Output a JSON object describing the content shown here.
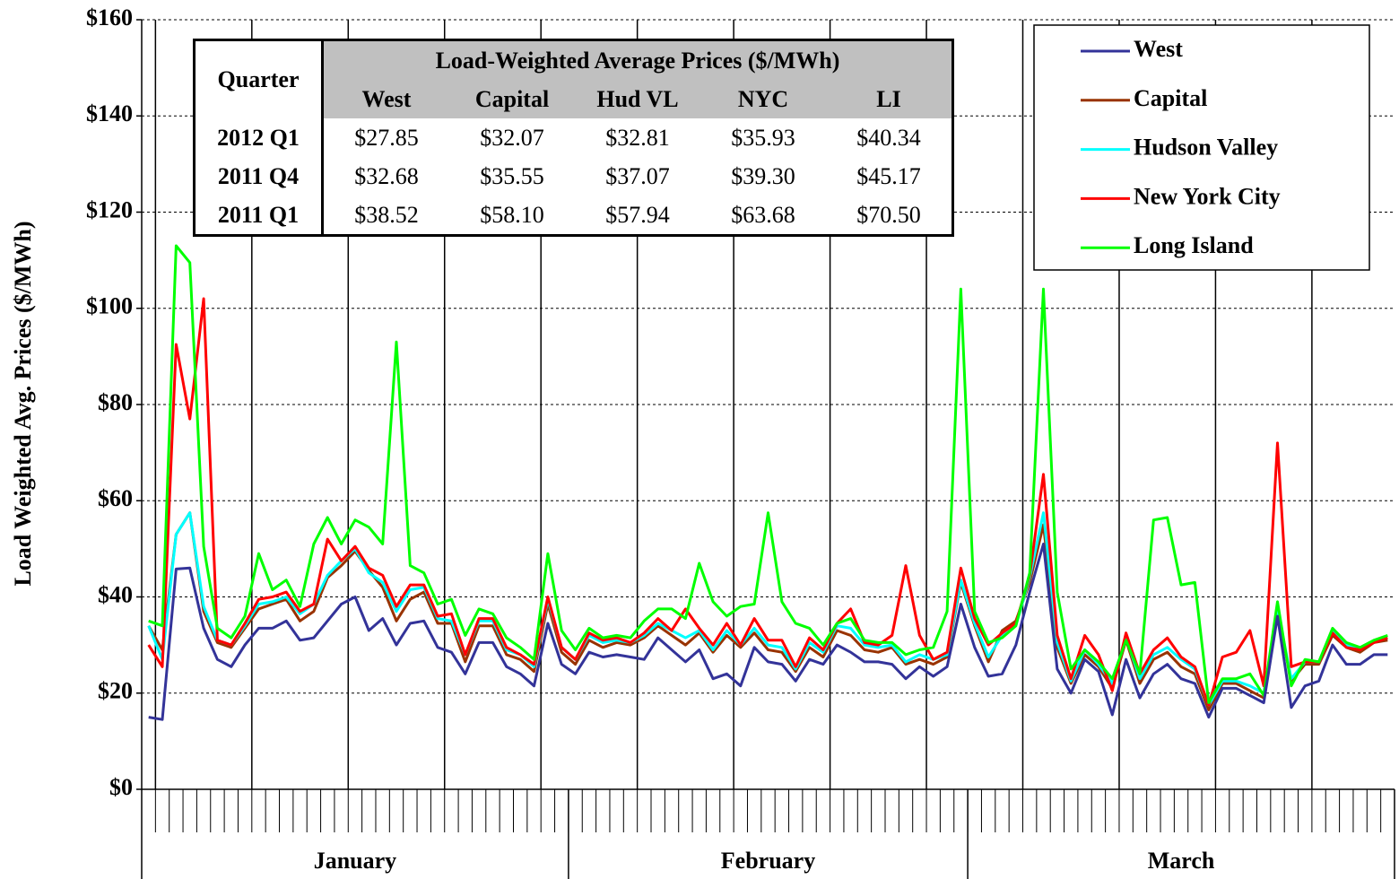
{
  "chart_data": {
    "type": "line",
    "y_label": "Load Weighted Avg. Prices  ($/MWh)",
    "categories": [
      null,
      null,
      null,
      null,
      null,
      null,
      null,
      null,
      null,
      null,
      null,
      null,
      null,
      null,
      null,
      null,
      null,
      null,
      null,
      null,
      null,
      null,
      null,
      null,
      null,
      null,
      null,
      null,
      null,
      null,
      null,
      null,
      null,
      null,
      null,
      null,
      null,
      null,
      null,
      null,
      null,
      null,
      null,
      null,
      null,
      null,
      null,
      null,
      null,
      null,
      null,
      null,
      null,
      null,
      null,
      null,
      null,
      null,
      null,
      null,
      null,
      null,
      null,
      null,
      null,
      null,
      null,
      null,
      null,
      null,
      null,
      null,
      null,
      null,
      null,
      null,
      null,
      null,
      null,
      null,
      null,
      null,
      null,
      null,
      null,
      null,
      null,
      null,
      null,
      null,
      null
    ],
    "x_groups": [
      "January",
      "February",
      "March"
    ],
    "group_sizes": [
      31,
      29,
      31
    ],
    "ylim": [
      0,
      160
    ],
    "yticks": [
      {
        "value": 0,
        "label": "$0"
      },
      {
        "value": 20,
        "label": "$20"
      },
      {
        "value": 40,
        "label": "$40"
      },
      {
        "value": 60,
        "label": "$60"
      },
      {
        "value": 80,
        "label": "$80"
      },
      {
        "value": 100,
        "label": "$100"
      },
      {
        "value": 120,
        "label": "$120"
      },
      {
        "value": 140,
        "label": "$140"
      },
      {
        "value": 160,
        "label": "$160"
      }
    ],
    "grid": true,
    "legend": "upper right",
    "series": [
      {
        "name": "West",
        "color": "#333399",
        "values": [
          15,
          14.5,
          45.8,
          46,
          33.5,
          27,
          25.5,
          30,
          33.5,
          33.5,
          35,
          31,
          31.5,
          35,
          38.5,
          40,
          33,
          35.5,
          30,
          34.5,
          35,
          29.5,
          28.5,
          24,
          30.5,
          30.5,
          25.5,
          24,
          21.5,
          34.5,
          26,
          24,
          28.5,
          27.5,
          28,
          27.5,
          27,
          31.5,
          29,
          26.5,
          29,
          23,
          24,
          21.5,
          29.5,
          26.5,
          26,
          22.5,
          27,
          26,
          30,
          28.5,
          26.5,
          26.5,
          26,
          23,
          25.5,
          23.5,
          25.5,
          38.5,
          29.5,
          23.5,
          24,
          30,
          41,
          51,
          25,
          20,
          27,
          24.5,
          15.5,
          27,
          19,
          24,
          26,
          23,
          22,
          15,
          21,
          21,
          19.5,
          18,
          36,
          17,
          21.5,
          22.5,
          30,
          26,
          26,
          28,
          28
        ]
      },
      {
        "name": "Capital",
        "color": "#993300",
        "values": [
          34,
          29,
          53,
          57.5,
          37,
          30.5,
          29.5,
          33.5,
          37.5,
          38.5,
          39.5,
          35,
          37,
          44,
          46.5,
          49.5,
          45.5,
          42,
          35,
          39.5,
          41,
          34.5,
          34.5,
          26.5,
          34,
          34,
          28,
          27,
          24.5,
          38.5,
          28.5,
          26,
          31,
          29.5,
          30.5,
          30,
          31.5,
          34,
          32,
          30,
          32.5,
          28.5,
          32,
          29.5,
          32.5,
          29,
          28.5,
          24.5,
          29.5,
          27.5,
          33,
          32,
          29,
          28.5,
          29.5,
          26,
          27,
          26,
          27.5,
          43,
          34,
          26.5,
          33,
          35,
          43,
          55,
          29.5,
          22,
          28,
          25.5,
          21,
          31,
          22,
          27,
          28.5,
          25.5,
          24,
          16.5,
          22,
          22,
          20.5,
          19,
          37,
          22.5,
          26,
          26,
          32,
          29.5,
          28.5,
          30.5,
          31
        ]
      },
      {
        "name": "Hudson Valley",
        "color": "#00ffff",
        "values": [
          34,
          27,
          53,
          57.5,
          38,
          31,
          30,
          34,
          38.5,
          39,
          40,
          36.5,
          38.5,
          44.5,
          47.5,
          50,
          45,
          43,
          37,
          41.5,
          42,
          35.5,
          35,
          28,
          35,
          35,
          29,
          28,
          25.5,
          39.5,
          29.5,
          27,
          32,
          30.5,
          31,
          30.5,
          32,
          34.5,
          33,
          31.5,
          33,
          29,
          33,
          30,
          33.5,
          30,
          29.5,
          25,
          30.5,
          28.5,
          34,
          33.5,
          30,
          29.5,
          30,
          26.5,
          28,
          27,
          28,
          43.5,
          34.5,
          27.5,
          32,
          34,
          44,
          57.5,
          30.5,
          22.5,
          29,
          26,
          22,
          31.5,
          23,
          28,
          29.5,
          27,
          25,
          17.5,
          22.5,
          22.5,
          21.5,
          20,
          37.5,
          23,
          26.5,
          26.5,
          33,
          30,
          29,
          31,
          31.5
        ]
      },
      {
        "name": "New York City",
        "color": "#ff0000",
        "values": [
          30,
          25.5,
          92.5,
          77,
          102,
          31,
          30,
          34.5,
          39.5,
          40,
          41,
          37,
          38.5,
          52,
          47.5,
          50.5,
          46,
          44.5,
          38,
          42.5,
          42.5,
          36,
          36.5,
          28,
          35.5,
          35.5,
          29.5,
          28,
          26,
          40,
          29.5,
          27,
          32.5,
          31,
          31.5,
          30.5,
          32.5,
          35.5,
          33,
          37.5,
          33.5,
          30,
          34.5,
          30,
          35.5,
          31,
          31,
          25.5,
          31.5,
          29,
          34.5,
          37.5,
          30.5,
          30,
          32,
          46.5,
          32,
          27,
          28.5,
          46,
          35.5,
          30,
          32.5,
          34.5,
          44.5,
          65.5,
          32,
          23,
          32,
          28,
          20.5,
          32.5,
          24,
          29,
          31.5,
          27.5,
          25.5,
          17.5,
          27.5,
          28.5,
          33,
          21.5,
          72,
          25.5,
          26.5,
          26.5,
          32.5,
          29.5,
          29,
          30.5,
          31.5
        ]
      },
      {
        "name": "Long Island",
        "color": "#00ff00",
        "values": [
          35,
          34,
          113,
          109.5,
          50.5,
          33.5,
          31.5,
          36,
          49,
          41.5,
          43.5,
          38,
          51,
          56.5,
          51,
          56,
          54.5,
          51,
          93,
          46.5,
          45,
          38.5,
          39.5,
          32,
          37.5,
          36.5,
          31.5,
          29.5,
          27,
          49,
          33,
          29,
          33.5,
          31.5,
          32,
          31.5,
          35,
          37.5,
          37.5,
          35.5,
          47,
          39,
          36,
          38,
          38.5,
          57.5,
          39,
          34.5,
          33.5,
          30,
          34.5,
          35.5,
          31,
          30.5,
          30.5,
          28,
          29,
          29.5,
          37,
          104,
          37,
          30.5,
          31.5,
          34,
          45,
          104,
          41,
          25,
          29,
          26.5,
          23,
          31,
          24,
          56,
          56.5,
          42.5,
          43,
          18,
          23,
          23,
          24,
          19.5,
          39,
          21.5,
          27,
          26.5,
          33.5,
          30.5,
          29.5,
          31,
          32
        ]
      }
    ],
    "table": {
      "corner": "Quarter",
      "header": "Load-Weighted Average Prices ($/MWh)",
      "columns": [
        "West",
        "Capital",
        "Hud VL",
        "NYC",
        "LI"
      ],
      "rows": [
        [
          "2012 Q1",
          "$27.85",
          "$32.07",
          "$32.81",
          "$35.93",
          "$40.34"
        ],
        [
          "2011 Q4",
          "$32.68",
          "$35.55",
          "$37.07",
          "$39.30",
          "$45.17"
        ],
        [
          "2011 Q1",
          "$38.52",
          "$58.10",
          "$57.94",
          "$63.68",
          "$70.50"
        ]
      ]
    }
  }
}
